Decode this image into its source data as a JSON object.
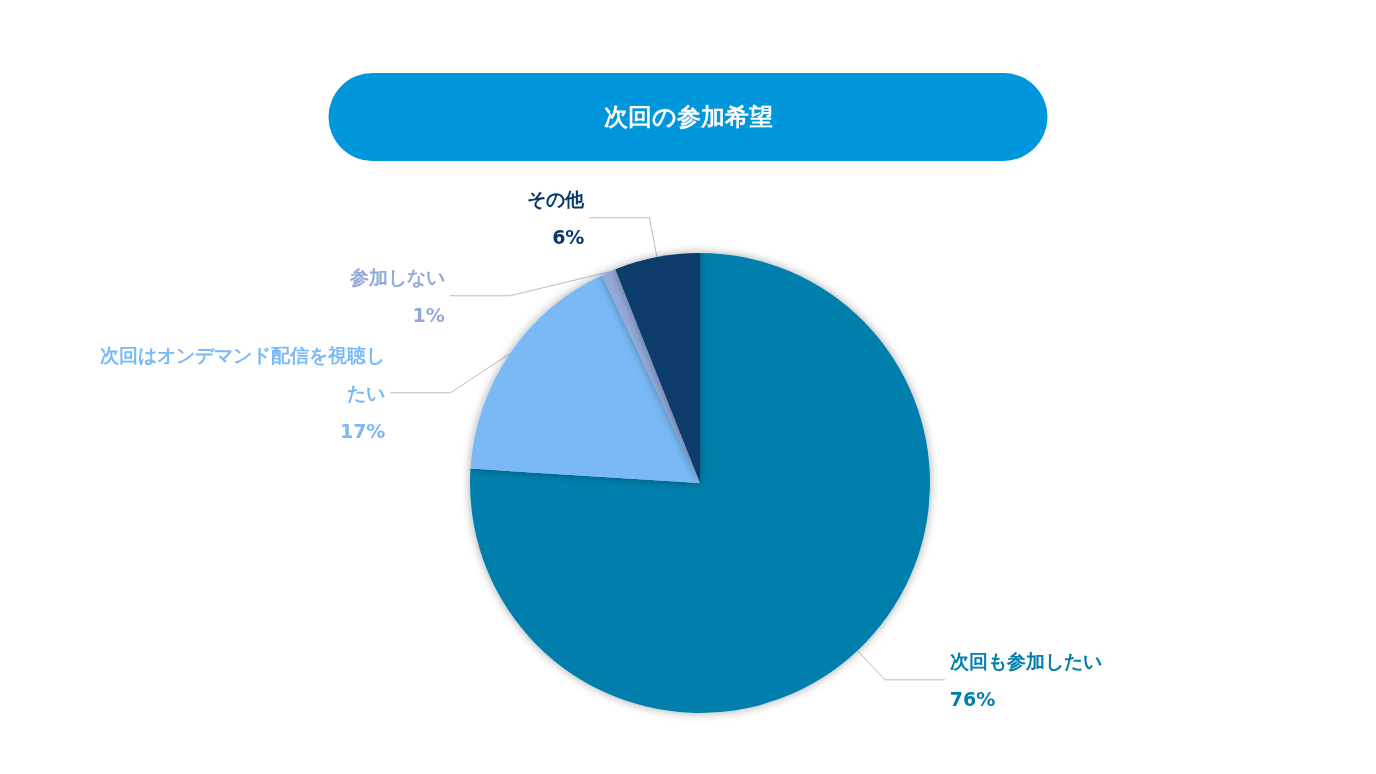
{
  "chart_data": {
    "type": "pie",
    "title": "次回の参加希望",
    "categories": [
      "次回も参加したい",
      "次回はオンデマンド配信を視聴したい",
      "参加しない",
      "その他"
    ],
    "values": [
      76,
      17,
      1,
      6
    ],
    "value_labels": [
      "76%",
      "17%",
      "1%",
      "6%"
    ],
    "colors": [
      "#007fad",
      "#7ab9f5",
      "#94a9d8",
      "#073a6b"
    ],
    "legend": false
  }
}
